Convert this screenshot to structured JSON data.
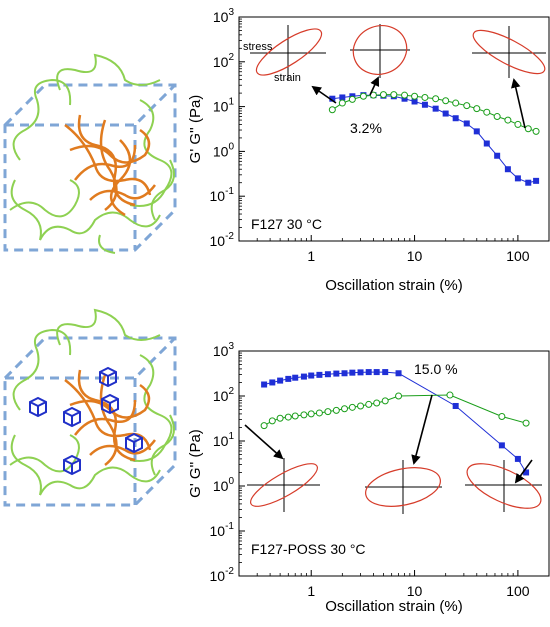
{
  "chart_data": [
    {
      "type": "scatter",
      "xscale": "log",
      "yscale": "log",
      "xlim": [
        0.2,
        200
      ],
      "ylim": [
        0.01,
        1000
      ],
      "xlabel": "Oscillation strain (%)",
      "ylabel": "G' G'' (Pa)",
      "x_ticks": [
        "1",
        "10",
        "100"
      ],
      "y_ticks": [
        {
          "base": "10",
          "exp": "3"
        },
        {
          "base": "10",
          "exp": "2"
        },
        {
          "base": "10",
          "exp": "1"
        },
        {
          "base": "10",
          "exp": "0"
        },
        {
          "base": "10",
          "exp": "-1"
        },
        {
          "base": "10",
          "exp": "-2"
        }
      ],
      "annotation": "F127  30 °C",
      "callout": "3.2%",
      "lissajous_labels": {
        "stress": "stress",
        "strain": "strain"
      },
      "series": [
        {
          "marker": "filled-square",
          "color": "#1f2fd6",
          "x": [
            1.6,
            2.0,
            2.5,
            3.2,
            4.0,
            5.0,
            6.3,
            8.0,
            10,
            12.6,
            16,
            20,
            25,
            32,
            40,
            50,
            63,
            80,
            100,
            126,
            150
          ],
          "y": [
            15,
            16,
            17,
            18,
            18,
            17.5,
            17,
            15,
            13,
            11,
            9,
            7,
            5.5,
            4.2,
            2.8,
            1.5,
            0.8,
            0.4,
            0.25,
            0.2,
            0.22
          ]
        },
        {
          "marker": "open-circle",
          "color": "#1a9e1a",
          "x": [
            1.6,
            2.0,
            2.5,
            3.2,
            4.0,
            5.0,
            6.3,
            8.0,
            10,
            12.6,
            16,
            20,
            25,
            32,
            40,
            50,
            63,
            80,
            100,
            126,
            150
          ],
          "y": [
            8.5,
            12,
            14.5,
            17,
            18,
            18.5,
            18.5,
            18,
            17,
            16,
            15,
            13.5,
            12,
            10.5,
            9,
            7.5,
            6,
            5,
            4,
            3.2,
            2.8
          ]
        }
      ]
    },
    {
      "type": "scatter",
      "xscale": "log",
      "yscale": "log",
      "xlim": [
        0.2,
        200
      ],
      "ylim": [
        0.01,
        1000
      ],
      "xlabel": "Oscillation strain (%)",
      "ylabel": "G' G'' (Pa)",
      "x_ticks": [
        "1",
        "10",
        "100"
      ],
      "y_ticks": [
        {
          "base": "10",
          "exp": "3"
        },
        {
          "base": "10",
          "exp": "2"
        },
        {
          "base": "10",
          "exp": "1"
        },
        {
          "base": "10",
          "exp": "0"
        },
        {
          "base": "10",
          "exp": "-1"
        },
        {
          "base": "10",
          "exp": "-2"
        }
      ],
      "annotation": "F127-POSS    30 °C",
      "callout": "15.0 %",
      "series": [
        {
          "marker": "filled-square",
          "color": "#1f2fd6",
          "x": [
            0.35,
            0.42,
            0.5,
            0.6,
            0.7,
            0.85,
            1.0,
            1.2,
            1.45,
            1.75,
            2.1,
            2.5,
            3.0,
            3.6,
            4.3,
            5.2,
            7.0,
            25,
            70,
            100,
            120
          ],
          "y": [
            180,
            200,
            220,
            240,
            255,
            270,
            285,
            295,
            305,
            315,
            320,
            330,
            335,
            340,
            340,
            340,
            320,
            60,
            8,
            4,
            2
          ]
        },
        {
          "marker": "open-circle",
          "color": "#1a9e1a",
          "x": [
            0.35,
            0.42,
            0.5,
            0.6,
            0.7,
            0.85,
            1.0,
            1.2,
            1.45,
            1.75,
            2.1,
            2.5,
            3.0,
            3.6,
            4.3,
            5.2,
            7.0,
            22,
            70,
            120
          ],
          "y": [
            22,
            28,
            32,
            34,
            36,
            38,
            40,
            42,
            45,
            48,
            52,
            56,
            60,
            65,
            70,
            78,
            100,
            105,
            35,
            25
          ]
        }
      ]
    }
  ]
}
